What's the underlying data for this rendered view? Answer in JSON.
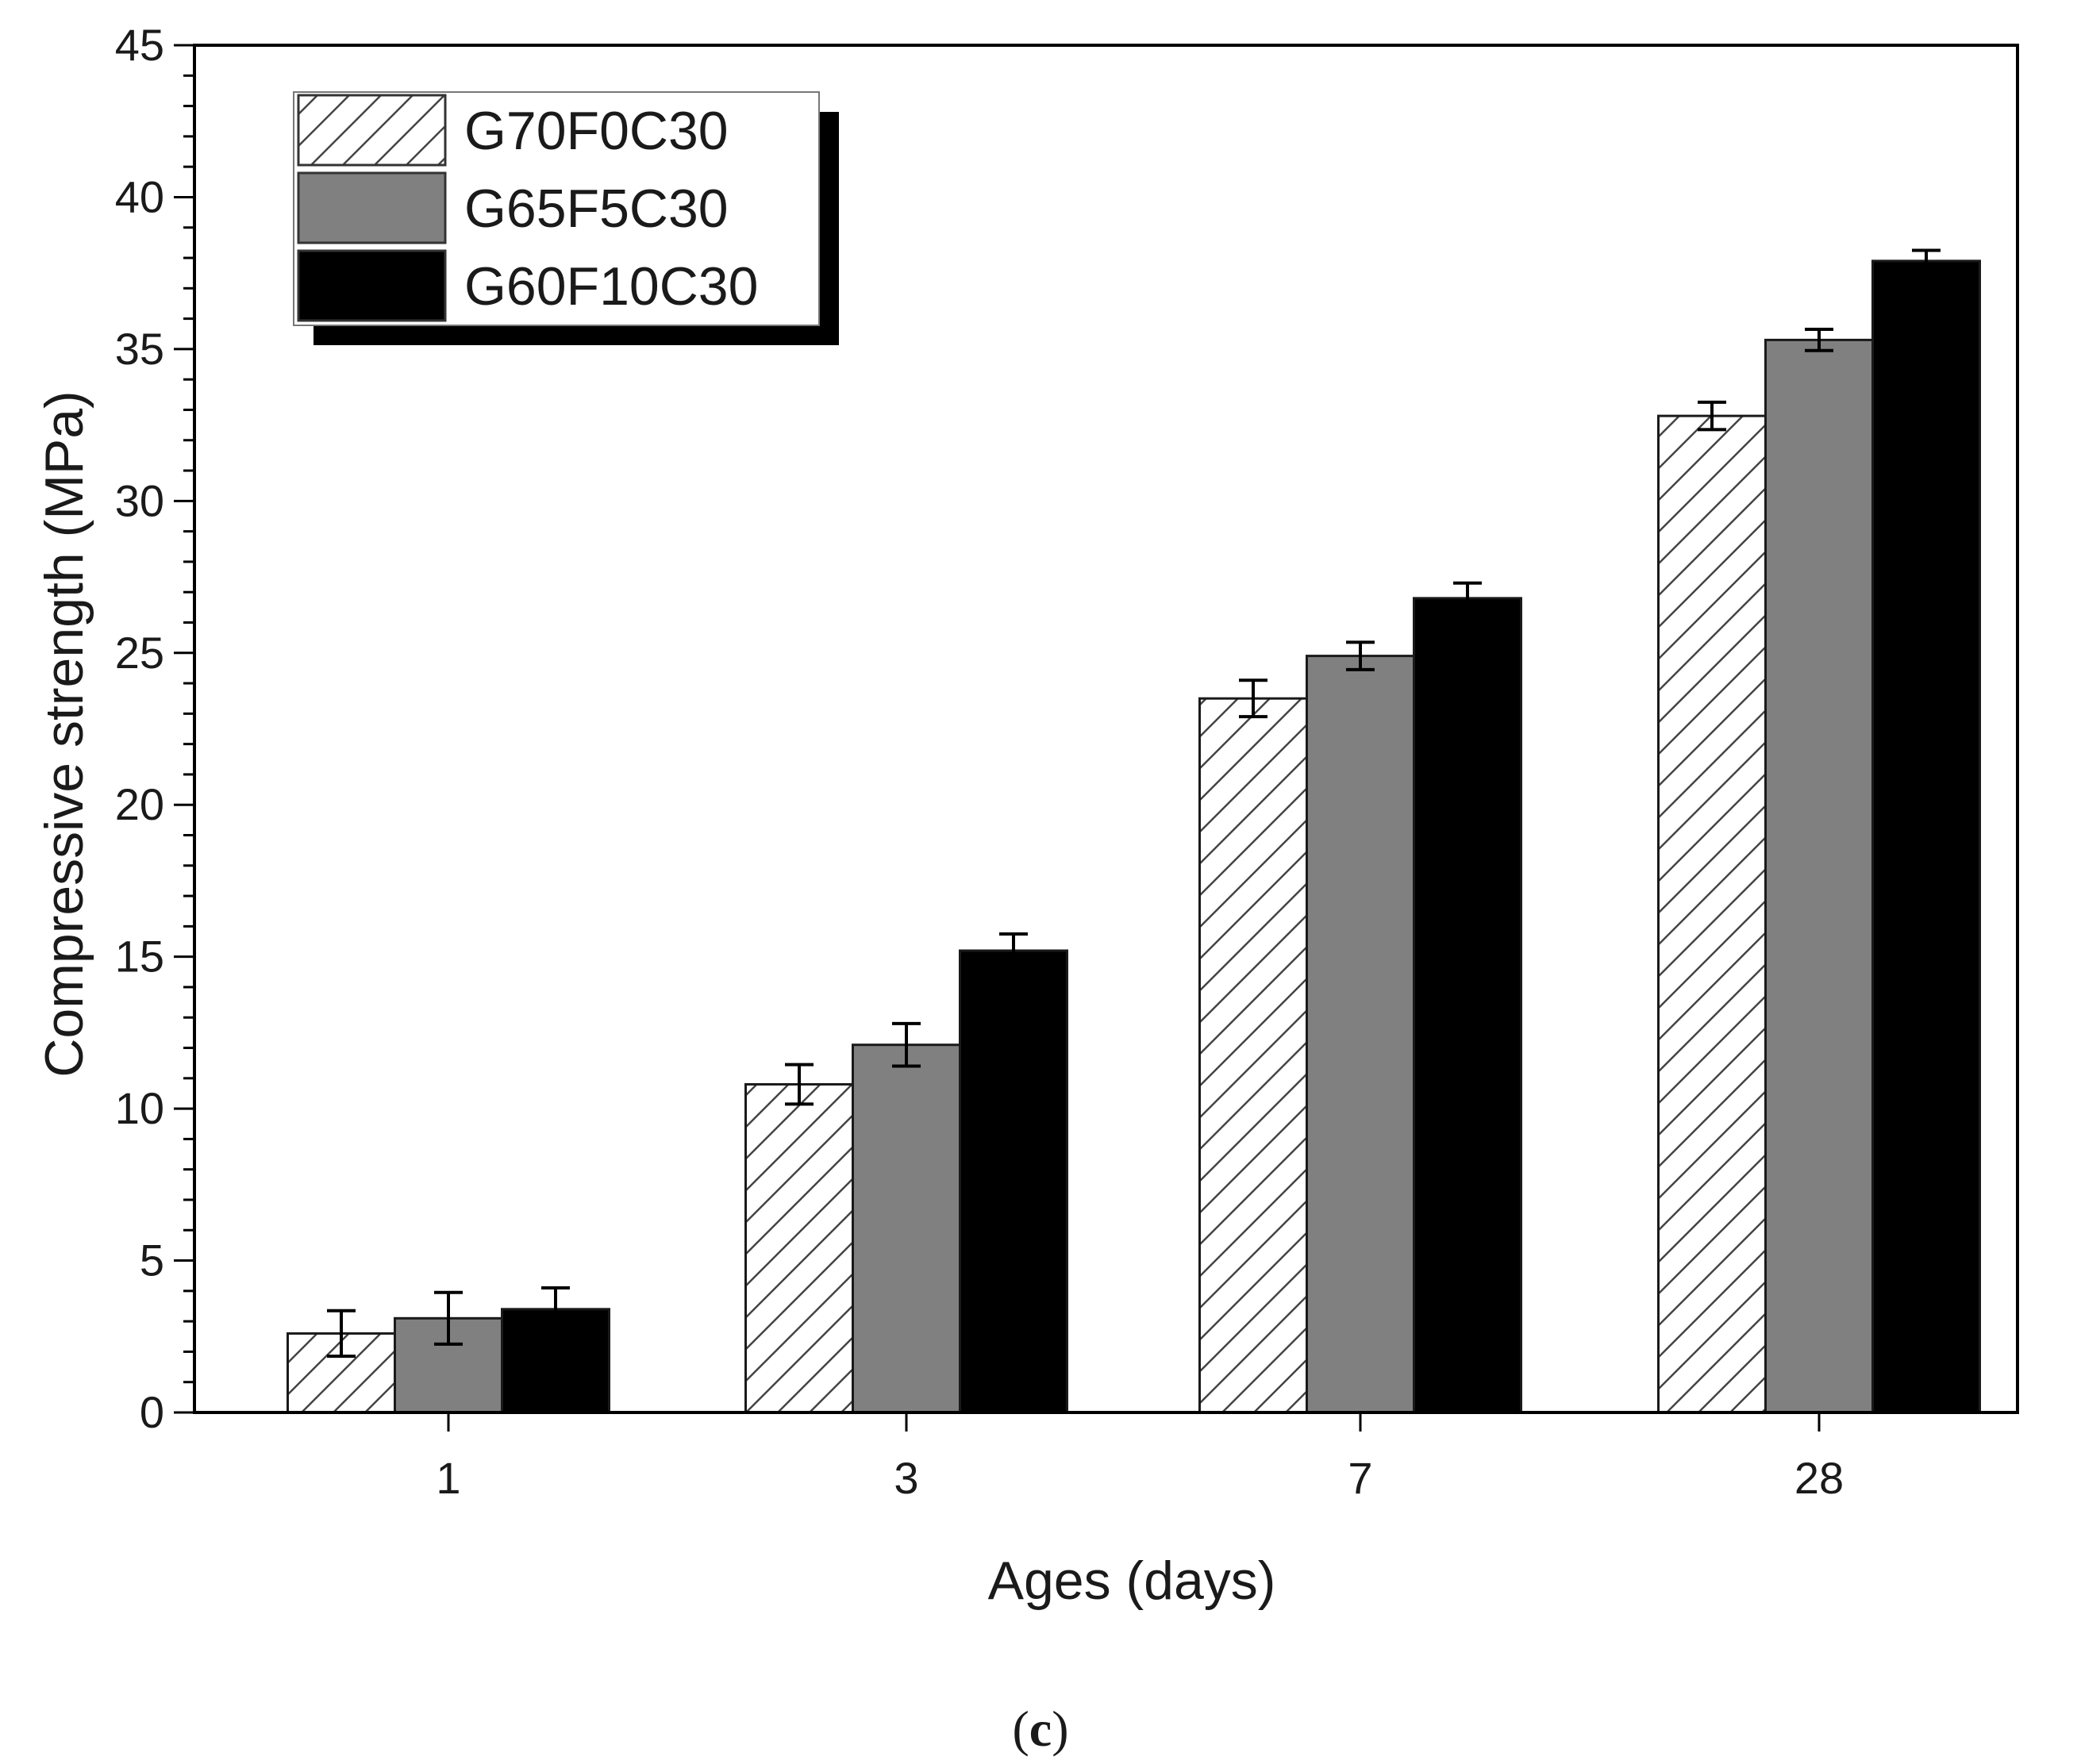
{
  "chart_data": {
    "type": "bar",
    "title": "",
    "xlabel": "Ages (days)",
    "ylabel": "Compressive strength (MPa)",
    "categories": [
      "1",
      "3",
      "7",
      "28"
    ],
    "ylim": [
      0,
      45
    ],
    "yticks": [
      0,
      5,
      10,
      15,
      20,
      25,
      30,
      35,
      40,
      45
    ],
    "grid": false,
    "legend_position": "top-left",
    "error_bars": true,
    "series": [
      {
        "name": "G70F0C30",
        "fill": "hatched",
        "color": "#ffffff",
        "values": [
          2.6,
          10.8,
          23.5,
          32.8
        ],
        "errors": [
          0.75,
          0.65,
          0.6,
          0.45
        ]
      },
      {
        "name": "G65F5C30",
        "fill": "solid",
        "color": "#808080",
        "values": [
          3.1,
          12.1,
          24.9,
          35.3
        ],
        "errors": [
          0.85,
          0.7,
          0.45,
          0.35
        ]
      },
      {
        "name": "G60F10C30",
        "fill": "solid",
        "color": "#000000",
        "values": [
          3.4,
          15.2,
          26.8,
          37.9
        ],
        "errors": [
          0.7,
          0.55,
          0.5,
          0.35
        ]
      }
    ]
  },
  "panel": {
    "open": "(",
    "letter": "c",
    "close": ")"
  }
}
